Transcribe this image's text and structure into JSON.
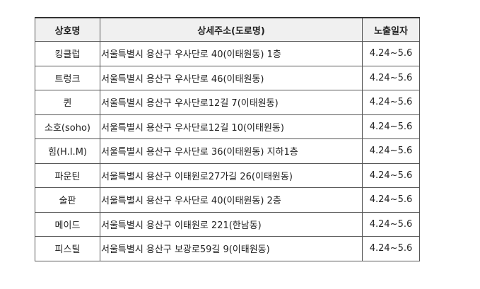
{
  "table": {
    "headers": [
      "상호명",
      "상세주소(도로명)",
      "노출일자"
    ],
    "rows": [
      [
        "킹클럽",
        "서울특별시 용산구 우사단로 40(이태원동) 1층",
        "4.24~5.6"
      ],
      [
        "트렁크",
        "서울특별시 용산구 우사단로 46(이태원동)",
        "4.24~5.6"
      ],
      [
        "퀸",
        "서울특별시 용산구 우사단로12길 7(이태원동)",
        "4.24~5.6"
      ],
      [
        "소호(soho)",
        "서울특별시 용산구 우사단로12길 10(이태원동)",
        "4.24~5.6"
      ],
      [
        "힘(H.I.M)",
        "서울특별시 용산구 우사단로 36(이태원동) 지하1층",
        "4.24~5.6"
      ],
      [
        "파운틴",
        "서울특별시 용산구 이태원로27가길 26(이태원동)",
        "4.24~5.6"
      ],
      [
        "술판",
        "서울특별시 용산구 우사단로 40(이태원동) 2층",
        "4.24~5.6"
      ],
      [
        "메이드",
        "서울특별시 용산구 이태원로 221(한남동)",
        "4.24~5.6"
      ],
      [
        "피스틸",
        "서울특별시 용산구 보광로59길 9(이태원동)",
        "4.24~5.6"
      ]
    ]
  }
}
